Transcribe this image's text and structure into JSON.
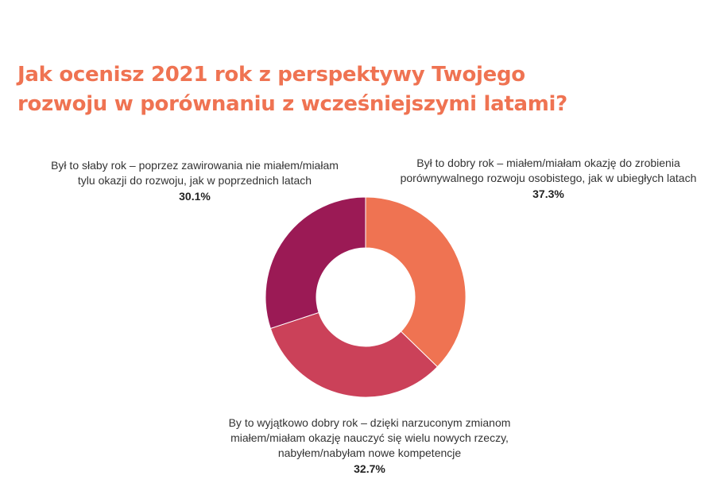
{
  "chart_data": {
    "type": "pie",
    "donut": true,
    "title_lines": [
      "Jak ocenisz 2021 rok z perspektywy Twojego",
      "rozwoju w porównaniu z wcześniejszymi latami?"
    ],
    "slices": [
      {
        "label_lines": [
          "Był to dobry rok – miałem/miałam okazję do zrobienia",
          "porównywalnego rozwoju osobistego, jak w ubiegłych latach"
        ],
        "value": 37.3,
        "value_label": "37.3%",
        "color": "#EF7352"
      },
      {
        "label_lines": [
          "By to wyjątkowo dobry rok – dzięki narzuconym zmianom",
          "miałem/miałam okazję nauczyć się wielu nowych rzeczy,",
          "nabyłem/nabyłam nowe kompetencje"
        ],
        "value": 32.7,
        "value_label": "32.7%",
        "color": "#CB4159"
      },
      {
        "label_lines": [
          "Był to słaby rok – poprzez zawirowania nie miałem/miałam",
          "tylu okazji do rozwoju, jak w poprzednich latach"
        ],
        "value": 30.1,
        "value_label": "30.1%",
        "color": "#9B1A55"
      }
    ]
  }
}
